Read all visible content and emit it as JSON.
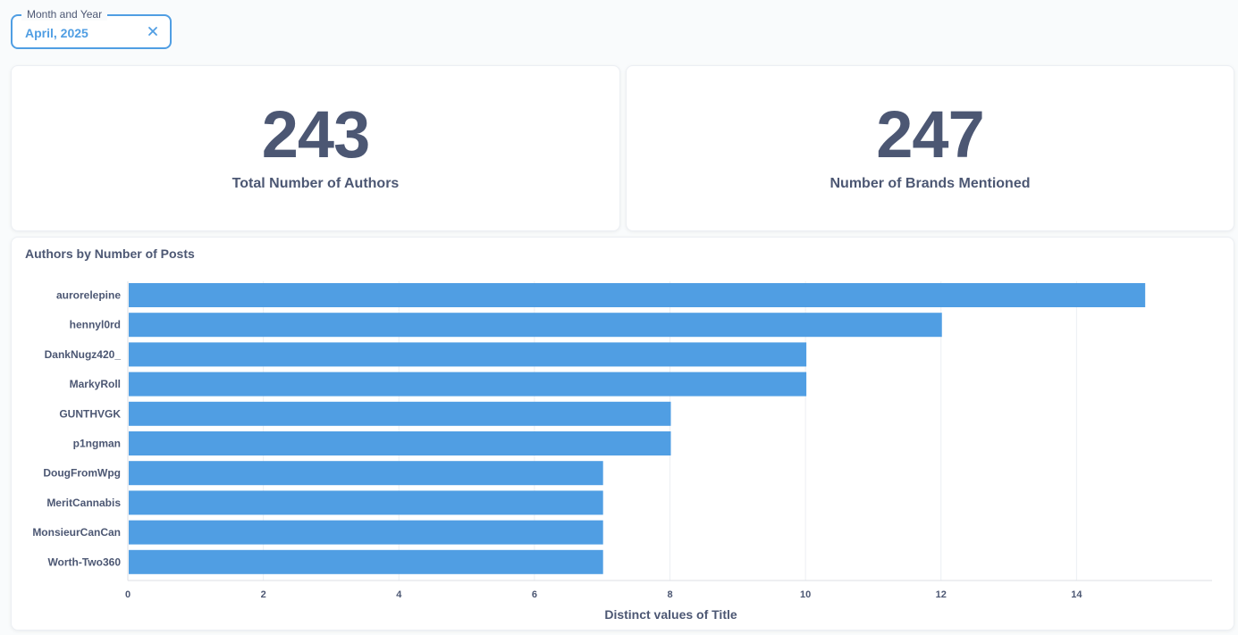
{
  "filter": {
    "label": "Month and Year",
    "value": "April, 2025",
    "clear_icon": "close-icon"
  },
  "scalars": [
    {
      "value": "243",
      "label": "Total Number of Authors"
    },
    {
      "value": "247",
      "label": "Number of Brands Mentioned"
    }
  ],
  "colors": {
    "accent": "#509ee3",
    "text": "#4c5773",
    "grid": "#eceff3"
  },
  "chart_data": {
    "type": "bar",
    "orientation": "horizontal",
    "title": "Authors by Number of Posts",
    "xlabel": "Distinct values of Title",
    "ylabel": "",
    "categories": [
      "aurorelepine",
      "hennyl0rd",
      "DankNugz420_",
      "MarkyRoll",
      "GUNTHVGK",
      "p1ngman",
      "DougFromWpg",
      "MeritCannabis",
      "MonsieurCanCan",
      "Worth-Two360"
    ],
    "values": [
      15,
      12,
      10,
      10,
      8,
      8,
      7,
      7,
      7,
      7
    ],
    "xlim": [
      0,
      16
    ],
    "xticks": [
      "0",
      "2",
      "4",
      "6",
      "8",
      "10",
      "12",
      "14"
    ],
    "grid": true,
    "color": "#509ee3"
  }
}
